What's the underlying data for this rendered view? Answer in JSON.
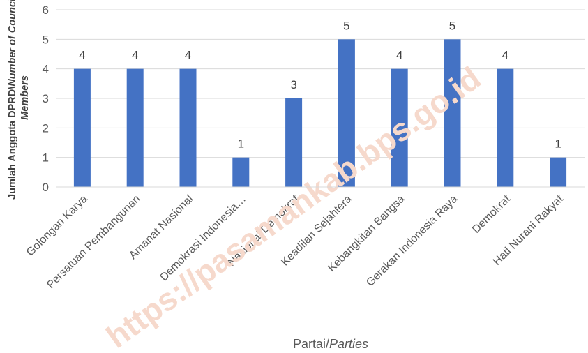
{
  "chart_data": {
    "type": "bar",
    "categories": [
      "Golongan Karya",
      "Persatuan Pembangunan",
      "Amanat Nasional",
      "Demokrasi Indonesia…",
      "Nasional Demokrat",
      "Keadilan Sejahtera",
      "Kebangkitan Bangsa",
      "Gerakan Indonesia Raya",
      "Demokrat",
      "Hati Nurani Rakyat"
    ],
    "values": [
      4,
      4,
      4,
      1,
      3,
      5,
      4,
      5,
      4,
      1
    ],
    "xlabel": "Partai/",
    "xlabel_italic": "Parties",
    "ylabel_line1": "Jumlah Anggota DPRD\\",
    "ylabel_line1_italic": "Number of Council",
    "ylabel_line2_italic": "Members",
    "ylim": [
      0,
      6
    ],
    "yticks": [
      0,
      1,
      2,
      3,
      4,
      5,
      6
    ],
    "grid": true,
    "legend": "none",
    "bar_color": "#4472c4",
    "data_labels": true
  },
  "watermark": "https://pasamankab.bps.go.id"
}
